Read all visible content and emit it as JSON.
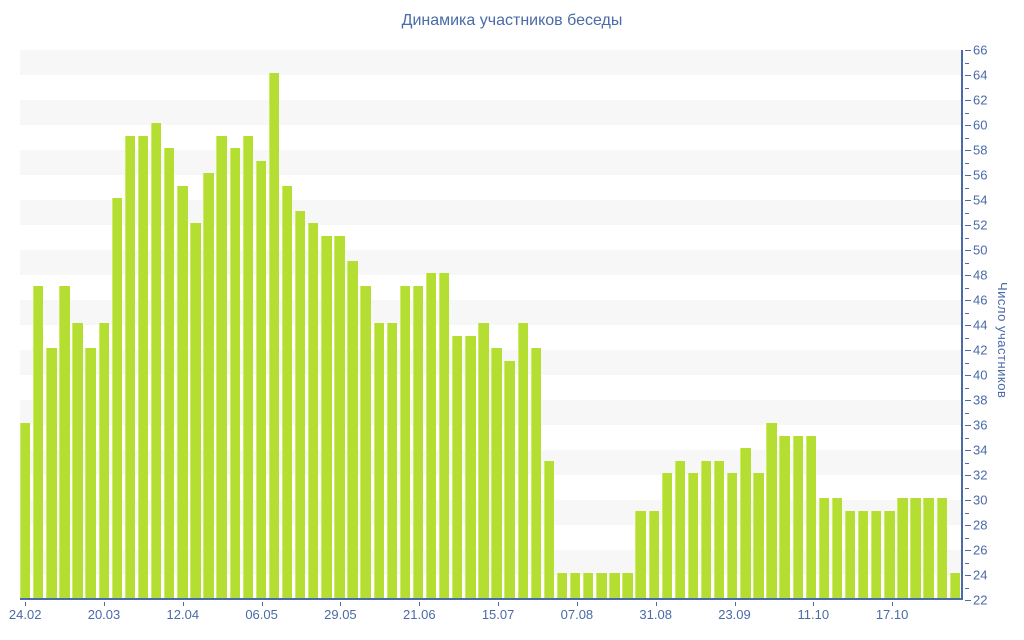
{
  "title": "Динамика участников беседы",
  "colors": {
    "bar": "#b5de33",
    "bar_edge": "#cdeb66",
    "text": "#4a6aa8",
    "axis": "#4a6aa8",
    "band": "#f7f7f7",
    "background": "#ffffff"
  },
  "chart_data": {
    "type": "bar",
    "title": "Динамика участников беседы",
    "xlabel": "",
    "ylabel": "Число участников",
    "ylim": [
      22,
      66
    ],
    "y_tick_step": 2,
    "y_minor_tick_step": 1,
    "legend_position": "none",
    "grid": "alternating horizontal gray bands, 2 units tall",
    "bar_count": 72,
    "x_tick_labels": [
      "24.02",
      "20.03",
      "12.04",
      "06.05",
      "29.05",
      "21.06",
      "15.07",
      "07.08",
      "31.08",
      "23.09",
      "11.10",
      "17.10"
    ],
    "x_tick_every_n_bars": 6,
    "values": [
      36,
      47,
      42,
      47,
      44,
      42,
      44,
      54,
      59,
      59,
      60,
      58,
      55,
      52,
      56,
      59,
      58,
      59,
      57,
      64,
      55,
      53,
      52,
      51,
      51,
      49,
      47,
      44,
      44,
      47,
      47,
      48,
      48,
      43,
      43,
      44,
      42,
      41,
      44,
      42,
      33,
      24,
      24,
      24,
      24,
      24,
      24,
      29,
      29,
      32,
      33,
      32,
      33,
      33,
      32,
      34,
      32,
      36,
      35,
      35,
      35,
      30,
      30,
      29,
      29,
      29,
      29,
      30,
      30,
      30,
      30,
      24
    ]
  }
}
